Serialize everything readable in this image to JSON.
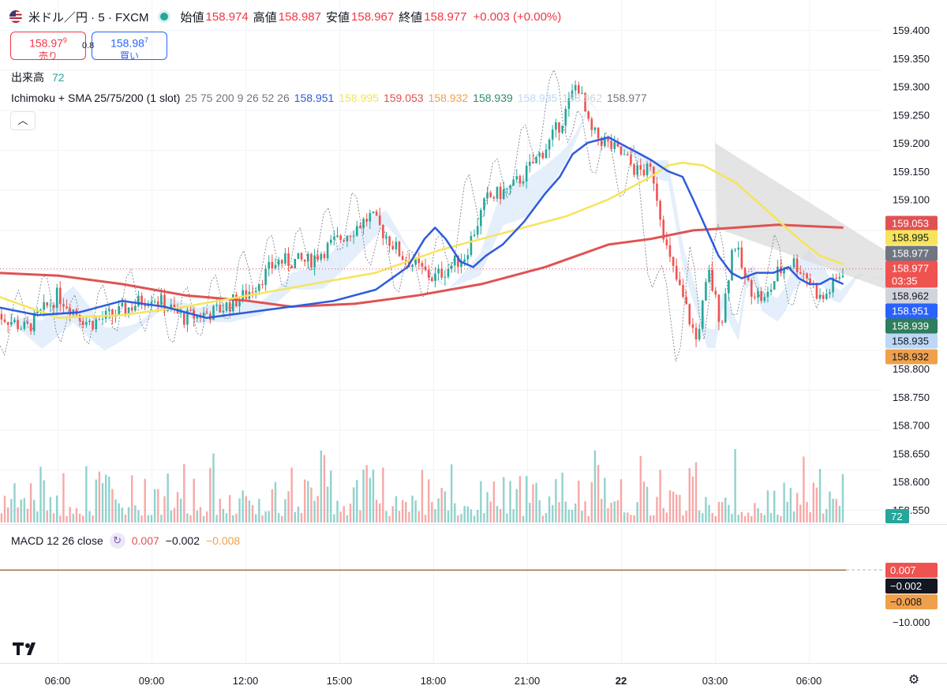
{
  "header": {
    "symbol": "米ドル／円 · 5 · FXCM",
    "open_label": "始値",
    "open_value": "158.974",
    "high_label": "高値",
    "high_value": "158.987",
    "low_label": "安値",
    "low_value": "158.967",
    "close_label": "終値",
    "close_value": "158.977",
    "change": "+0.003 (+0.00%)"
  },
  "trade": {
    "sell_price_main": "158.97",
    "sell_price_sup": "9",
    "sell_label": "売り",
    "spread": "0.8",
    "buy_price_main": "158.98",
    "buy_price_sup": "7",
    "buy_label": "買い"
  },
  "volume_legend": {
    "label": "出来高",
    "value": "72"
  },
  "indicator_legend": {
    "name": "Ichimoku + SMA 25/75/200 (1 slot)",
    "params": "25 75 200 9 26 52 26",
    "values": [
      "158.951",
      "158.995",
      "159.053",
      "158.932",
      "158.939",
      "158.935",
      "158.962",
      "158.977"
    ],
    "colors": [
      "#2e5bdc",
      "#f2e45a",
      "#e05252",
      "#f0a04b",
      "#2e8b6e",
      "#bcd8f5",
      "#cfd3da",
      "#707680"
    ]
  },
  "macd_legend": {
    "name": "MACD",
    "params": "12 26 close",
    "values": [
      "0.007",
      "−0.002",
      "−0.008"
    ],
    "colors": [
      "#e05252",
      "#131722",
      "#f0a04b"
    ]
  },
  "icons": [
    "us-flag-icon",
    "market-open-dot-icon",
    "collapse-chevron-icon",
    "macd-settings-icon",
    "tradingview-logo-icon",
    "settings-gear-icon"
  ],
  "chart_data": {
    "type": "candlestick",
    "y_axis": {
      "min": 158.55,
      "max": 159.4,
      "ticks": [
        "159.400",
        "159.350",
        "159.300",
        "159.250",
        "159.200",
        "159.150",
        "159.100",
        "158.800",
        "158.750",
        "158.700",
        "158.650",
        "158.600",
        "158.550"
      ]
    },
    "x_axis": {
      "ticks": [
        "06:00",
        "09:00",
        "12:00",
        "15:00",
        "18:00",
        "21:00",
        "22",
        "03:00",
        "06:00"
      ]
    },
    "price_tags": [
      {
        "value": "159.053",
        "bg": "#e05252",
        "fg": "#ffffff"
      },
      {
        "value": "158.995",
        "bg": "#f7e45a",
        "fg": "#131722"
      },
      {
        "value": "158.977",
        "bg": "#707680",
        "fg": "#ffffff"
      },
      {
        "value": "158.977",
        "sub": "03:35",
        "bg": "#ef5350",
        "fg": "#ffffff"
      },
      {
        "value": "158.962",
        "bg": "#d1d4dc",
        "fg": "#131722"
      },
      {
        "value": "158.951",
        "bg": "#2962ff",
        "fg": "#ffffff"
      },
      {
        "value": "158.939",
        "bg": "#2e7d5b",
        "fg": "#ffffff"
      },
      {
        "value": "158.935",
        "bg": "#bcd8f5",
        "fg": "#131722"
      },
      {
        "value": "158.932",
        "bg": "#f0a04b",
        "fg": "#131722"
      }
    ],
    "volume_tag": {
      "value": "72",
      "bg": "#26a69a"
    },
    "macd_axis": {
      "tick": "−10.000"
    },
    "macd_tags": [
      {
        "value": "0.007",
        "bg": "#ef5350",
        "fg": "#ffffff"
      },
      {
        "value": "−0.002",
        "bg": "#131722",
        "fg": "#ffffff"
      },
      {
        "value": "−0.008",
        "bg": "#f0a04b",
        "fg": "#131722"
      }
    ],
    "sma25": [
      [
        0,
        158.91
      ],
      [
        2,
        158.895
      ],
      [
        4,
        158.9
      ],
      [
        6,
        158.92
      ],
      [
        8,
        158.91
      ],
      [
        10,
        158.89
      ],
      [
        12,
        158.9
      ],
      [
        14,
        158.91
      ],
      [
        16,
        158.92
      ],
      [
        18,
        158.94
      ],
      [
        19.5,
        158.98
      ],
      [
        20.3,
        159.03
      ],
      [
        20.8,
        159.05
      ],
      [
        21.3,
        159.03
      ],
      [
        22,
        158.99
      ],
      [
        22.6,
        158.98
      ],
      [
        23.2,
        159.0
      ],
      [
        24,
        159.02
      ],
      [
        25,
        159.06
      ],
      [
        26,
        159.11
      ],
      [
        26.7,
        159.14
      ],
      [
        27.3,
        159.18
      ],
      [
        28,
        159.2
      ],
      [
        29,
        159.21
      ],
      [
        29.5,
        159.2
      ],
      [
        30,
        159.19
      ],
      [
        31,
        159.17
      ],
      [
        31.8,
        159.15
      ],
      [
        32.5,
        159.14
      ],
      [
        33,
        159.1
      ],
      [
        33.6,
        159.05
      ],
      [
        34.2,
        159.0
      ],
      [
        34.8,
        158.97
      ],
      [
        35.3,
        158.96
      ],
      [
        36,
        158.97
      ],
      [
        36.8,
        158.97
      ],
      [
        37.5,
        158.98
      ],
      [
        38,
        158.96
      ],
      [
        38.5,
        158.95
      ],
      [
        39,
        158.95
      ],
      [
        39.5,
        158.96
      ],
      [
        40.1,
        158.95
      ]
    ],
    "sma75": [
      [
        0,
        158.93
      ],
      [
        3,
        158.89
      ],
      [
        6,
        158.895
      ],
      [
        9,
        158.91
      ],
      [
        12,
        158.93
      ],
      [
        15,
        158.95
      ],
      [
        18,
        158.97
      ],
      [
        21,
        159.01
      ],
      [
        24,
        159.04
      ],
      [
        27,
        159.07
      ],
      [
        29,
        159.1
      ],
      [
        31,
        159.14
      ],
      [
        31.8,
        159.16
      ],
      [
        32.5,
        159.165
      ],
      [
        33.5,
        159.16
      ],
      [
        35,
        159.13
      ],
      [
        36.5,
        159.08
      ],
      [
        38,
        159.03
      ],
      [
        39,
        159.0
      ],
      [
        40.1,
        158.985
      ]
    ],
    "sma200": [
      [
        0,
        158.97
      ],
      [
        3,
        158.965
      ],
      [
        6,
        158.95
      ],
      [
        9,
        158.93
      ],
      [
        12,
        158.92
      ],
      [
        14,
        158.91
      ],
      [
        17,
        158.915
      ],
      [
        20,
        158.93
      ],
      [
        23,
        158.95
      ],
      [
        26,
        158.98
      ],
      [
        29,
        159.02
      ],
      [
        31,
        159.03
      ],
      [
        33,
        159.045
      ],
      [
        35,
        159.05
      ],
      [
        37,
        159.055
      ],
      [
        40.1,
        159.05
      ]
    ]
  }
}
